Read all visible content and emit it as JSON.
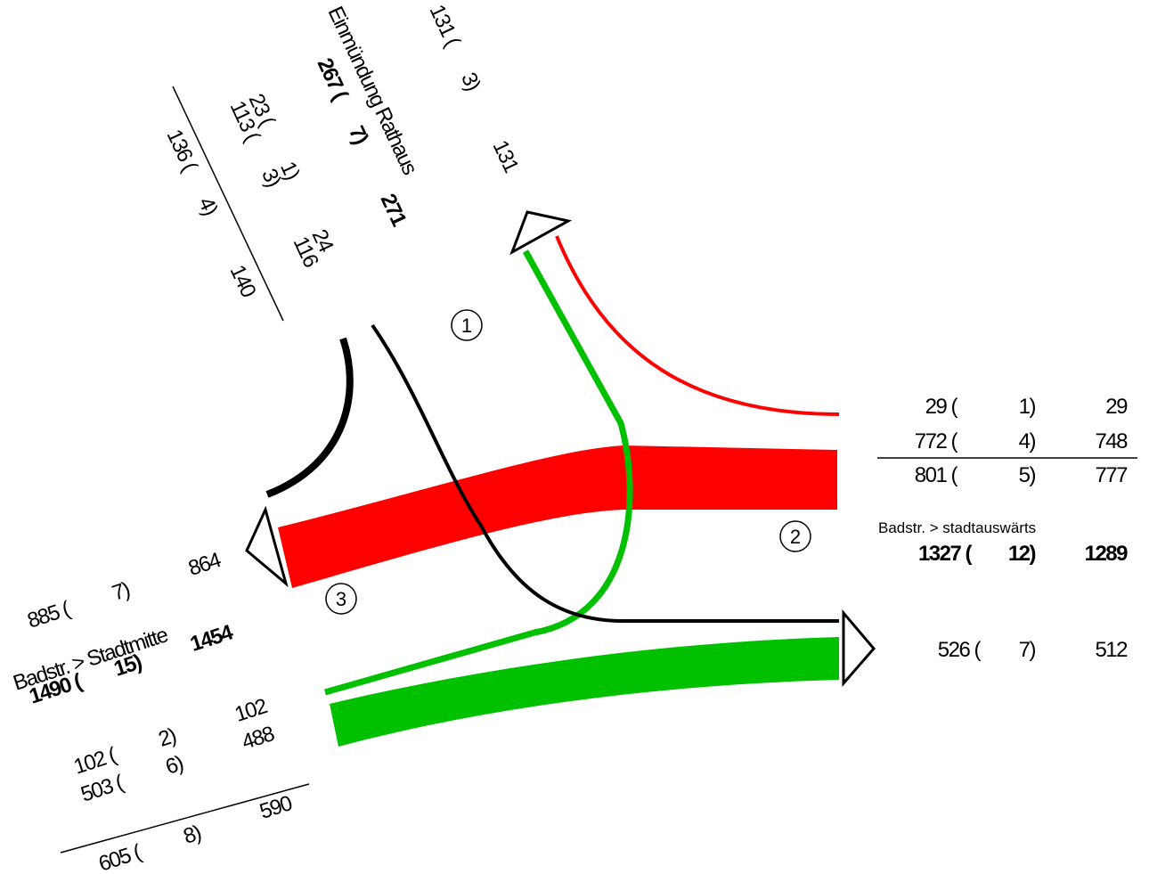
{
  "colors": {
    "red": "#ff0000",
    "green": "#00c000",
    "black": "#000000"
  },
  "nodes": [
    "1",
    "2",
    "3"
  ],
  "north": {
    "name": "Einmündung Rathaus",
    "in_left": {
      "v1": "23 (",
      "v2": "1)",
      "v3": "24"
    },
    "in_right": {
      "v1": "113 (",
      "v2": "3)",
      "v3": "116"
    },
    "in_sum": {
      "v1": "136 (",
      "v2": "4)",
      "v3": "140"
    },
    "total": {
      "a": "267 (",
      "b": "7)",
      "c": "271"
    },
    "out": {
      "a": "131 (",
      "b": "3)",
      "c": "131"
    }
  },
  "east": {
    "name": "Badstr. > stadtauswärts",
    "in1": [
      "29 (",
      "1)",
      "29"
    ],
    "in2": [
      "772 (",
      "4)",
      "748"
    ],
    "in_sum": [
      "801 (",
      "5)",
      "777"
    ],
    "total": [
      "1327 (",
      "12)",
      "1289"
    ],
    "out": [
      "526 (",
      "7)",
      "512"
    ]
  },
  "west": {
    "name": "Badstr. > Stadtmitte",
    "out": {
      "a": "885 (",
      "b": "7)",
      "c": "864"
    },
    "total": {
      "a": "1490 (",
      "b": "15)",
      "c": "1454"
    },
    "in1": {
      "a": "102 (",
      "b": "2)",
      "c": "102"
    },
    "in2": {
      "a": "503 (",
      "b": "6)",
      "c": "488"
    },
    "in_sum": {
      "a": "605 (",
      "b": "8)",
      "c": "590"
    }
  }
}
